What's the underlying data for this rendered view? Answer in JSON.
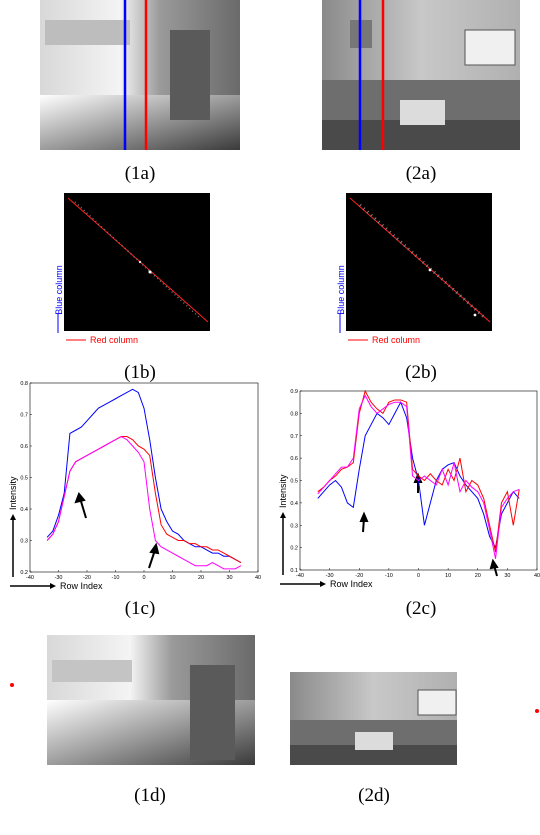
{
  "captions": [
    "(1a)",
    "(2a)",
    "(1b)",
    "(2b)",
    "(1c)",
    "(2c)",
    "(1d)",
    "(2d)"
  ],
  "correlation_maps": {
    "y_label": "Blue column",
    "x_label": "Red column"
  },
  "chart_data": [
    {
      "type": "line",
      "x_label": "Row Index",
      "y_label": "Intensity",
      "x": [
        -34,
        -32,
        -30,
        -28,
        -26,
        -24,
        -22,
        -20,
        -18,
        -16,
        -14,
        -12,
        -10,
        -8,
        -6,
        -4,
        -2,
        0,
        2,
        4,
        6,
        8,
        10,
        12,
        14,
        16,
        18,
        20,
        22,
        24,
        26,
        28,
        30,
        32,
        34
      ],
      "xlim": [
        -40,
        40
      ],
      "xticks": [
        -40,
        -30,
        -20,
        -10,
        0,
        10,
        20,
        30,
        40
      ],
      "ylim": [
        0.2,
        0.8
      ],
      "yticks": [
        0.2,
        0.3,
        0.4,
        0.5,
        0.6,
        0.7,
        0.8
      ],
      "series": [
        {
          "color": "#0000ff",
          "values": [
            0.31,
            0.33,
            0.38,
            0.45,
            0.64,
            0.65,
            0.66,
            0.68,
            0.7,
            0.72,
            0.73,
            0.74,
            0.75,
            0.76,
            0.77,
            0.78,
            0.77,
            0.72,
            0.62,
            0.5,
            0.4,
            0.36,
            0.33,
            0.32,
            0.3,
            0.29,
            0.28,
            0.28,
            0.27,
            0.26,
            0.26,
            0.25,
            0.25,
            0.24,
            0.23
          ]
        },
        {
          "color": "#ff0000",
          "values": [
            0.3,
            0.32,
            0.36,
            0.44,
            0.52,
            0.55,
            0.56,
            0.57,
            0.58,
            0.59,
            0.6,
            0.61,
            0.62,
            0.63,
            0.63,
            0.62,
            0.6,
            0.59,
            0.57,
            0.45,
            0.35,
            0.32,
            0.31,
            0.3,
            0.3,
            0.29,
            0.29,
            0.28,
            0.28,
            0.27,
            0.27,
            0.26,
            0.25,
            0.24,
            0.23
          ]
        },
        {
          "color": "#ff00ff",
          "values": [
            0.3,
            0.32,
            0.36,
            0.44,
            0.52,
            0.55,
            0.56,
            0.57,
            0.58,
            0.59,
            0.6,
            0.61,
            0.62,
            0.63,
            0.62,
            0.6,
            0.58,
            0.55,
            0.4,
            0.3,
            0.28,
            0.27,
            0.26,
            0.25,
            0.24,
            0.23,
            0.22,
            0.22,
            0.22,
            0.23,
            0.22,
            0.21,
            0.21,
            0.21,
            0.22
          ]
        }
      ]
    },
    {
      "type": "line",
      "x_label": "Row Index",
      "y_label": "Intensity",
      "x": [
        -34,
        -32,
        -30,
        -28,
        -26,
        -24,
        -22,
        -20,
        -18,
        -16,
        -14,
        -12,
        -10,
        -8,
        -6,
        -4,
        -2,
        0,
        2,
        4,
        6,
        8,
        10,
        12,
        14,
        16,
        18,
        20,
        22,
        24,
        26,
        28,
        30,
        32,
        34
      ],
      "xlim": [
        -40,
        40
      ],
      "xticks": [
        -40,
        -30,
        -20,
        -10,
        0,
        10,
        20,
        30,
        40
      ],
      "ylim": [
        0.1,
        0.9
      ],
      "yticks": [
        0.1,
        0.2,
        0.3,
        0.4,
        0.5,
        0.6,
        0.7,
        0.8,
        0.9
      ],
      "series": [
        {
          "color": "#0000ff",
          "values": [
            0.42,
            0.45,
            0.48,
            0.5,
            0.47,
            0.4,
            0.38,
            0.55,
            0.7,
            0.75,
            0.8,
            0.78,
            0.75,
            0.8,
            0.85,
            0.78,
            0.6,
            0.5,
            0.3,
            0.4,
            0.5,
            0.55,
            0.57,
            0.58,
            0.52,
            0.48,
            0.45,
            0.42,
            0.35,
            0.25,
            0.2,
            0.35,
            0.4,
            0.45,
            0.42
          ]
        },
        {
          "color": "#ff0000",
          "values": [
            0.45,
            0.47,
            0.5,
            0.52,
            0.55,
            0.56,
            0.58,
            0.8,
            0.9,
            0.85,
            0.82,
            0.8,
            0.85,
            0.86,
            0.86,
            0.85,
            0.55,
            0.52,
            0.5,
            0.53,
            0.5,
            0.48,
            0.55,
            0.5,
            0.6,
            0.45,
            0.5,
            0.48,
            0.42,
            0.3,
            0.18,
            0.4,
            0.45,
            0.3,
            0.46
          ]
        },
        {
          "color": "#ff00ff",
          "values": [
            0.44,
            0.47,
            0.5,
            0.53,
            0.56,
            0.56,
            0.6,
            0.82,
            0.88,
            0.83,
            0.8,
            0.82,
            0.84,
            0.85,
            0.85,
            0.83,
            0.52,
            0.5,
            0.52,
            0.5,
            0.48,
            0.55,
            0.48,
            0.58,
            0.45,
            0.5,
            0.47,
            0.45,
            0.4,
            0.28,
            0.15,
            0.38,
            0.42,
            0.45,
            0.46
          ]
        }
      ]
    }
  ]
}
